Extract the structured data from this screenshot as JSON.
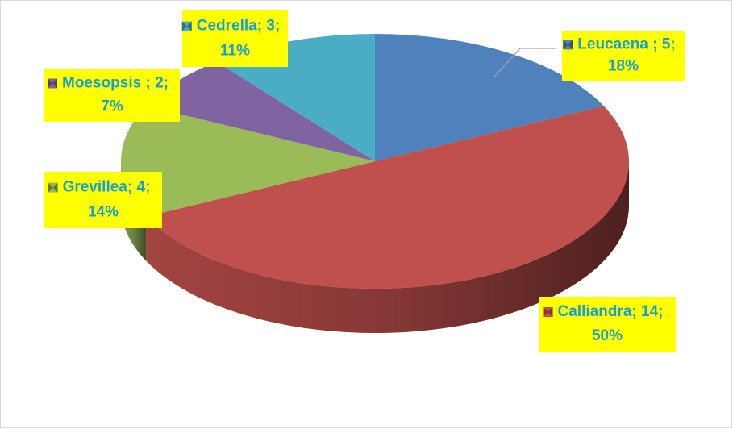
{
  "chart_data": {
    "type": "pie3d",
    "categories": [
      "Leucaena ",
      "Calliandra",
      "Grevillea",
      "Moesopsis ",
      "Cedrella"
    ],
    "values": [
      5,
      14,
      4,
      2,
      3
    ],
    "percentages": [
      18,
      50,
      14,
      7,
      11
    ],
    "percentage_labels": [
      "18%",
      "50%",
      "14%",
      "7%",
      "11%"
    ],
    "label_separator": ";",
    "colors": [
      "#4f81bd",
      "#c0504d",
      "#9bbb59",
      "#8064a2",
      "#4bacc6"
    ],
    "label_background": "#ffff00"
  }
}
